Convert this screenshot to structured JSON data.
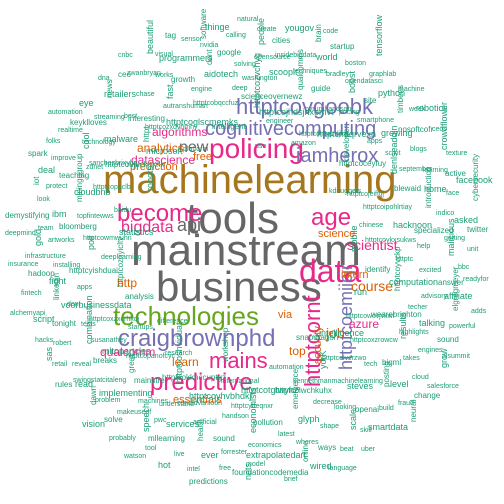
{
  "palette": {
    "gold": "#a6761d",
    "gray": "#666666",
    "blue": "#7570b3",
    "pink": "#e7298a",
    "green": "#66a61e",
    "orange": "#d95f02",
    "teal": "#1b9e77",
    "mustard": "#e6ab02"
  },
  "words": [
    {
      "text": "machinelearning",
      "color": "gold"
    },
    {
      "text": "mainstream",
      "color": "gray"
    },
    {
      "text": "business",
      "color": "gray"
    },
    {
      "text": "tools",
      "color": "gray"
    },
    {
      "text": "technologies",
      "color": "green"
    },
    {
      "text": "craigbrownphd",
      "color": "blue"
    },
    {
      "text": "policing",
      "color": "pink"
    },
    {
      "text": "become",
      "color": "pink"
    },
    {
      "text": "predictive",
      "color": "pink"
    },
    {
      "text": "httptcovgoobk",
      "color": "blue"
    },
    {
      "text": "cognitivecomputing",
      "color": "blue"
    },
    {
      "text": "iamherox",
      "color": "blue"
    },
    {
      "text": "data",
      "color": "pink"
    },
    {
      "text": "age",
      "color": "pink"
    },
    {
      "text": "mains",
      "color": "pink"
    },
    {
      "text": "bigdata",
      "color": "pink"
    },
    {
      "text": "api",
      "color": "gray"
    },
    {
      "text": "httptcoemiicjr",
      "color": "blue"
    },
    {
      "text": "httptcornt",
      "color": "pink"
    },
    {
      "text": "new",
      "color": "gray"
    },
    {
      "text": "datascience",
      "color": "pink"
    },
    {
      "text": "algorithms",
      "color": "pink"
    },
    {
      "text": "analytics",
      "color": "orange"
    },
    {
      "text": "scientist",
      "color": "pink"
    },
    {
      "text": "course",
      "color": "orange"
    },
    {
      "text": "azure",
      "color": "pink"
    },
    {
      "text": "learn",
      "color": "orange"
    },
    {
      "text": "qualcomm",
      "color": "pink"
    },
    {
      "text": "http",
      "color": "orange"
    },
    {
      "text": "job",
      "color": "orange"
    },
    {
      "text": "top",
      "color": "orange"
    },
    {
      "text": "free",
      "color": "orange"
    },
    {
      "text": "essentials",
      "color": "orange"
    },
    {
      "text": "prediction",
      "color": "orange"
    },
    {
      "text": "science",
      "color": "orange"
    },
    {
      "text": "via",
      "color": "orange"
    },
    {
      "text": "security",
      "color": "orange"
    },
    {
      "text": "intern",
      "color": "orange"
    },
    {
      "text": "mobile",
      "color": "teal"
    },
    {
      "text": "difference",
      "color": "teal"
    },
    {
      "text": "use",
      "color": "teal"
    },
    {
      "text": "snapdragon",
      "color": "teal"
    },
    {
      "text": "statistics",
      "color": "teal"
    },
    {
      "text": "kdnuggets",
      "color": "teal"
    },
    {
      "text": "workshop",
      "color": "teal"
    },
    {
      "text": "platform",
      "color": "teal"
    },
    {
      "text": "run",
      "color": "teal"
    },
    {
      "text": "analysis",
      "color": "teal"
    },
    {
      "text": "amazon",
      "color": "teal"
    },
    {
      "text": "automation",
      "color": "teal"
    },
    {
      "text": "robots",
      "color": "teal"
    },
    {
      "text": "chinese",
      "color": "teal"
    },
    {
      "text": "research",
      "color": "teal"
    },
    {
      "text": "intelligent",
      "color": "teal"
    },
    {
      "text": "intelligence",
      "color": "teal"
    },
    {
      "text": "deeplearning",
      "color": "teal"
    },
    {
      "text": "developer",
      "color": "teal"
    },
    {
      "text": "international",
      "color": "teal"
    },
    {
      "text": "microsoft",
      "color": "teal"
    },
    {
      "text": "identify",
      "color": "teal"
    },
    {
      "text": "startups",
      "color": "teal"
    },
    {
      "text": "engineer",
      "color": "teal"
    },
    {
      "text": "yorK",
      "color": "teal"
    },
    {
      "text": "baidu",
      "color": "teal"
    },
    {
      "text": "httptcojeifttjj",
      "color": "teal"
    },
    {
      "text": "httptcokknccuptgz",
      "color": "teal"
    },
    {
      "text": "httptcoglscmemks",
      "color": "teal"
    },
    {
      "text": "httptcowcvjvkwf",
      "color": "teal"
    },
    {
      "text": "httptcoznyicltv",
      "color": "teal"
    },
    {
      "text": "httptcohcqzdjkg",
      "color": "teal"
    },
    {
      "text": "httptcotgtwyhz",
      "color": "teal"
    },
    {
      "text": "httptcoujuckukhx",
      "color": "teal"
    },
    {
      "text": "httptcoykxsukws",
      "color": "teal"
    },
    {
      "text": "httptcopanofcyc",
      "color": "teal"
    },
    {
      "text": "httptcozvchyg",
      "color": "teal"
    },
    {
      "text": "httptcolvzrzwo",
      "color": "teal"
    },
    {
      "text": "httptcowmwuhn",
      "color": "teal"
    },
    {
      "text": "httptcoceyfuy",
      "color": "teal"
    },
    {
      "text": "httptcoyhvbhdkj",
      "color": "teal"
    },
    {
      "text": "httptcozxdvhmhy",
      "color": "teal"
    },
    {
      "text": "httptcoyvckp",
      "color": "teal"
    },
    {
      "text": "httptcoxzxcrhkoj",
      "color": "teal"
    },
    {
      "text": "httptcojhdsjhxomvt",
      "color": "teal"
    },
    {
      "text": "httptcoiwchkuhx",
      "color": "teal"
    },
    {
      "text": "httptcopaclb",
      "color": "teal"
    },
    {
      "text": "httptcoipohlrtiay",
      "color": "teal"
    },
    {
      "text": "httptcoshviduat",
      "color": "teal"
    },
    {
      "text": "httptcobqccfuz",
      "color": "teal"
    },
    {
      "text": "httptcoxzrowcw",
      "color": "teal"
    },
    {
      "text": "httptcyishduai",
      "color": "teal"
    },
    {
      "text": "httptcmtqrvexn",
      "color": "teal"
    },
    {
      "text": "httptcytfeqnxr",
      "color": "teal"
    },
    {
      "text": "httpt",
      "color": "teal"
    },
    {
      "text": "httptc",
      "color": "teal"
    },
    {
      "text": "mltopartcles",
      "color": "teal"
    },
    {
      "text": "scienceovernewz",
      "color": "teal"
    },
    {
      "text": "kennethmanmachinelearning",
      "color": "teal"
    },
    {
      "text": "topfintewws",
      "color": "teal"
    },
    {
      "text": "denlseaddin",
      "color": "teal"
    },
    {
      "text": "ronaldvanloon",
      "color": "teal"
    },
    {
      "text": "autranshuman",
      "color": "teal"
    },
    {
      "text": "wearebrighton",
      "color": "teal"
    },
    {
      "text": "voorbusinessdata",
      "color": "teal"
    },
    {
      "text": "pyrumhandson",
      "color": "teal"
    },
    {
      "text": "emergence",
      "color": "teal"
    },
    {
      "text": "sanchezbrixyhq",
      "color": "teal"
    },
    {
      "text": "hacknoon",
      "color": "teal"
    },
    {
      "text": "mainstre",
      "color": "teal"
    },
    {
      "text": "deep",
      "color": "teal"
    },
    {
      "text": "tech",
      "color": "teal"
    },
    {
      "text": "poll",
      "color": "teal"
    },
    {
      "text": "apps",
      "color": "teal"
    },
    {
      "text": "handson",
      "color": "teal"
    },
    {
      "text": "interesting",
      "color": "teal"
    },
    {
      "text": "computation",
      "color": "teal"
    },
    {
      "text": "susanathey",
      "color": "teal"
    },
    {
      "text": "qualcomms",
      "color": "teal"
    },
    {
      "text": "decrease",
      "color": "teal"
    },
    {
      "text": "cloudbnb",
      "color": "teal"
    },
    {
      "text": "blewaid",
      "color": "teal"
    },
    {
      "text": "understand",
      "color": "teal"
    },
    {
      "text": "engine",
      "color": "teal"
    },
    {
      "text": "results",
      "color": "teal"
    },
    {
      "text": "apps",
      "color": "teal"
    },
    {
      "text": "pricing",
      "color": "teal"
    },
    {
      "text": "pollution",
      "color": "teal"
    },
    {
      "text": "malware",
      "color": "teal"
    },
    {
      "text": "help",
      "color": "teal"
    },
    {
      "text": "great",
      "color": "teal"
    },
    {
      "text": "washington",
      "color": "teal"
    },
    {
      "text": "steves",
      "color": "teal"
    },
    {
      "text": "bloomberg",
      "color": "teal"
    },
    {
      "text": "scikit",
      "color": "teal"
    },
    {
      "text": "artificial",
      "color": "teal"
    },
    {
      "text": "fast",
      "color": "teal"
    },
    {
      "text": "techer",
      "color": "teal"
    },
    {
      "text": "tests",
      "color": "teal"
    },
    {
      "text": "guide",
      "color": "teal"
    },
    {
      "text": "glyph",
      "color": "teal"
    },
    {
      "text": "zdnet",
      "color": "teal"
    },
    {
      "text": "introduction",
      "color": "teal"
    },
    {
      "text": "machines",
      "color": "teal"
    },
    {
      "text": "aidotech",
      "color": "teal"
    },
    {
      "text": "bigml",
      "color": "teal"
    },
    {
      "text": "installing",
      "color": "teal"
    },
    {
      "text": "smartphone",
      "color": "teal"
    },
    {
      "text": "economists",
      "color": "teal"
    },
    {
      "text": "best",
      "color": "teal"
    },
    {
      "text": "excited",
      "color": "teal"
    },
    {
      "text": "breaks",
      "color": "teal"
    },
    {
      "text": "scoopit",
      "color": "teal"
    },
    {
      "text": "looking",
      "color": "teal"
    },
    {
      "text": "miningggroup",
      "color": "teal"
    },
    {
      "text": "september",
      "color": "teal"
    },
    {
      "text": "services",
      "color": "teal"
    },
    {
      "text": "growth",
      "color": "teal"
    },
    {
      "text": "highlights",
      "color": "teal"
    },
    {
      "text": "dont",
      "color": "teal"
    },
    {
      "text": "boost",
      "color": "teal"
    },
    {
      "text": "latest",
      "color": "teal"
    },
    {
      "text": "technology",
      "color": "teal"
    },
    {
      "text": "specialized",
      "color": "teal"
    },
    {
      "text": "implementing",
      "color": "teal"
    },
    {
      "text": "solving",
      "color": "teal"
    },
    {
      "text": "posting",
      "color": "teal"
    },
    {
      "text": "artworks",
      "color": "teal"
    },
    {
      "text": "growing",
      "color": "teal"
    },
    {
      "text": "sound",
      "color": "teal"
    },
    {
      "text": "chase",
      "color": "teal"
    },
    {
      "text": "advisory",
      "color": "teal"
    },
    {
      "text": "combination",
      "color": "teal"
    },
    {
      "text": "techniques",
      "color": "teal"
    },
    {
      "text": "shape",
      "color": "teal"
    },
    {
      "text": "teaching",
      "color": "teal"
    },
    {
      "text": "home",
      "color": "teal"
    },
    {
      "text": "pwc",
      "color": "teal"
    },
    {
      "text": "dont",
      "color": "teal"
    },
    {
      "text": "takes",
      "color": "teal"
    },
    {
      "text": "fight",
      "color": "teal"
    },
    {
      "text": "site",
      "color": "teal"
    },
    {
      "text": "economics",
      "color": "teal"
    },
    {
      "text": "streaming",
      "color": "teal"
    },
    {
      "text": "malicious",
      "color": "teal"
    },
    {
      "text": "swingstatcitaleng",
      "color": "teal"
    },
    {
      "text": "opensource",
      "color": "teal"
    },
    {
      "text": "openai",
      "color": "teal"
    },
    {
      "text": "ibm",
      "color": "teal"
    },
    {
      "text": "blogs",
      "color": "teal"
    },
    {
      "text": "health",
      "color": "teal"
    },
    {
      "text": "works",
      "color": "teal"
    },
    {
      "text": "talking",
      "color": "teal"
    },
    {
      "text": "tonight",
      "color": "teal"
    },
    {
      "text": "bradley",
      "color": "teal"
    },
    {
      "text": "wheres",
      "color": "teal"
    },
    {
      "text": "cool",
      "color": "teal"
    },
    {
      "text": "indico",
      "color": "teal"
    },
    {
      "text": "makeuseof",
      "color": "teal"
    },
    {
      "text": "google",
      "color": "teal"
    },
    {
      "text": "level",
      "color": "teal"
    },
    {
      "text": "infrastructure",
      "color": "teal"
    },
    {
      "text": "timbens",
      "color": "teal"
    },
    {
      "text": "forrester",
      "color": "teal"
    },
    {
      "text": "retailers",
      "color": "teal"
    },
    {
      "text": "answer",
      "color": "teal"
    },
    {
      "text": "reveal",
      "color": "teal"
    },
    {
      "text": "insidebigdata",
      "color": "teal"
    },
    {
      "text": "scale",
      "color": "teal"
    },
    {
      "text": "protect",
      "color": "teal"
    },
    {
      "text": "learning",
      "color": "teal"
    },
    {
      "text": "mllearning",
      "color": "teal"
    },
    {
      "text": "programmers",
      "color": "teal"
    },
    {
      "text": "engines",
      "color": "teal"
    },
    {
      "text": "linkedin",
      "color": "teal"
    },
    {
      "text": "opendatasci",
      "color": "teal"
    },
    {
      "text": "extrapolatedart",
      "color": "teal"
    },
    {
      "text": "keyklloves",
      "color": "teal"
    },
    {
      "text": "getting",
      "color": "teal"
    },
    {
      "text": "problem",
      "color": "teal"
    },
    {
      "text": "people",
      "color": "teal"
    },
    {
      "text": "build",
      "color": "teal"
    },
    {
      "text": "team",
      "color": "teal"
    },
    {
      "text": "nosoftcofr",
      "color": "teal"
    },
    {
      "text": "ever",
      "color": "teal"
    },
    {
      "text": "zwanbryan",
      "color": "teal"
    },
    {
      "text": "elgregmeyer",
      "color": "teal"
    },
    {
      "text": "robert",
      "color": "teal"
    },
    {
      "text": "world",
      "color": "teal"
    },
    {
      "text": "ways",
      "color": "teal"
    },
    {
      "text": "improve",
      "color": "teal"
    },
    {
      "text": "face",
      "color": "teal"
    },
    {
      "text": "speech",
      "color": "teal"
    },
    {
      "text": "nvidia",
      "color": "teal"
    },
    {
      "text": "cloud",
      "color": "teal"
    },
    {
      "text": "hadoop",
      "color": "teal"
    },
    {
      "text": "python",
      "color": "teal"
    },
    {
      "text": "model",
      "color": "teal"
    },
    {
      "text": "news",
      "color": "teal"
    },
    {
      "text": "bbc",
      "color": "teal"
    },
    {
      "text": "read",
      "color": "teal"
    },
    {
      "text": "cities",
      "color": "teal"
    },
    {
      "text": "skill",
      "color": "teal"
    },
    {
      "text": "look",
      "color": "teal"
    },
    {
      "text": "crowdflower",
      "color": "teal"
    },
    {
      "text": "live",
      "color": "teal"
    },
    {
      "text": "visual",
      "color": "teal"
    },
    {
      "text": "sound",
      "color": "teal"
    },
    {
      "text": "script",
      "color": "teal"
    },
    {
      "text": "boston",
      "color": "teal"
    },
    {
      "text": "online",
      "color": "teal"
    },
    {
      "text": "realtime",
      "color": "teal"
    },
    {
      "text": "asked",
      "color": "teal"
    },
    {
      "text": "solve",
      "color": "teal"
    },
    {
      "text": "calling",
      "color": "teal"
    },
    {
      "text": "fraud",
      "color": "teal"
    },
    {
      "text": "gold",
      "color": "teal"
    },
    {
      "text": "week",
      "color": "teal"
    },
    {
      "text": "free",
      "color": "teal"
    },
    {
      "text": "ceo",
      "color": "teal"
    },
    {
      "text": "affiliate",
      "color": "teal"
    },
    {
      "text": "retail",
      "color": "teal"
    },
    {
      "text": "brain",
      "color": "teal"
    },
    {
      "text": "beat",
      "color": "teal"
    },
    {
      "text": "deal",
      "color": "teal"
    },
    {
      "text": "active",
      "color": "teal"
    },
    {
      "text": "tool",
      "color": "teal"
    },
    {
      "text": "sensor",
      "color": "teal"
    },
    {
      "text": "grow",
      "color": "teal"
    },
    {
      "text": "fintech",
      "color": "teal"
    },
    {
      "text": "graphlab",
      "color": "teal"
    },
    {
      "text": "foundationcodemedia",
      "color": "teal"
    },
    {
      "text": "eye",
      "color": "teal"
    },
    {
      "text": "unit",
      "color": "teal"
    },
    {
      "text": "dawn",
      "color": "teal"
    },
    {
      "text": "create",
      "color": "teal"
    },
    {
      "text": "smartdata",
      "color": "teal"
    },
    {
      "text": "demystifying",
      "color": "teal"
    },
    {
      "text": "ceos",
      "color": "teal"
    },
    {
      "text": "intel",
      "color": "teal"
    },
    {
      "text": "beautiful",
      "color": "teal"
    },
    {
      "text": "powerful",
      "color": "teal"
    },
    {
      "text": "hacks",
      "color": "teal"
    },
    {
      "text": "startup",
      "color": "teal"
    },
    {
      "text": "wired",
      "color": "teal"
    },
    {
      "text": "folks",
      "color": "teal"
    },
    {
      "text": "cybersecurity",
      "color": "teal"
    },
    {
      "text": "probably",
      "color": "teal"
    },
    {
      "text": "thinge",
      "color": "teal"
    },
    {
      "text": "change",
      "color": "teal"
    },
    {
      "text": "insurance",
      "color": "teal"
    },
    {
      "text": "machine",
      "color": "teal"
    },
    {
      "text": "nets",
      "color": "teal"
    },
    {
      "text": "dna",
      "color": "teal"
    },
    {
      "text": "readyfor",
      "color": "teal"
    },
    {
      "text": "rules",
      "color": "teal"
    },
    {
      "text": "yougov",
      "color": "teal"
    },
    {
      "text": "uber",
      "color": "teal"
    },
    {
      "text": "iot",
      "color": "teal"
    },
    {
      "text": "texture",
      "color": "teal"
    },
    {
      "text": "hot",
      "color": "teal"
    },
    {
      "text": "tag",
      "color": "teal"
    },
    {
      "text": "aisummit",
      "color": "teal"
    },
    {
      "text": "alchemyapi",
      "color": "teal"
    },
    {
      "text": "tensorflow",
      "color": "teal"
    },
    {
      "text": "brief",
      "color": "teal"
    },
    {
      "text": "automation",
      "color": "teal"
    },
    {
      "text": "twitter",
      "color": "teal"
    },
    {
      "text": "vision",
      "color": "teal"
    },
    {
      "text": "natural",
      "color": "teal"
    },
    {
      "text": "neural",
      "color": "teal"
    },
    {
      "text": "deepmind",
      "color": "teal"
    },
    {
      "text": "robotics",
      "color": "teal"
    },
    {
      "text": "predictions",
      "color": "teal"
    },
    {
      "text": "cnbc",
      "color": "teal"
    },
    {
      "text": "adds",
      "color": "teal"
    },
    {
      "text": "sas",
      "color": "teal"
    },
    {
      "text": "code",
      "color": "teal"
    },
    {
      "text": "language",
      "color": "teal"
    },
    {
      "text": "spark",
      "color": "teal"
    },
    {
      "text": "facebook",
      "color": "teal"
    },
    {
      "text": "watson",
      "color": "teal"
    },
    {
      "text": "software",
      "color": "teal"
    },
    {
      "text": "salesforce",
      "color": "teal"
    }
  ]
}
